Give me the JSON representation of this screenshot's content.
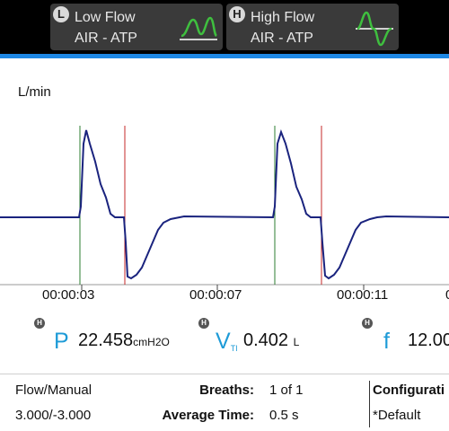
{
  "header": {
    "low_flow": {
      "badge": "L",
      "title": "Low Flow",
      "subtitle": "AIR - ATP"
    },
    "high_flow": {
      "badge": "H",
      "title": "High Flow",
      "subtitle": "AIR - ATP"
    },
    "icon_color": "#3fbf3f",
    "accent_color": "#1e88e5"
  },
  "chart_data": {
    "type": "line",
    "ylabel": "L/min",
    "x_tick_labels": [
      "00:00:03",
      "00:00:07",
      "00:00:11"
    ],
    "series_color": "#1a237e",
    "trigger_color": "#2e7d32",
    "end_color": "#c62828"
  },
  "readouts": [
    {
      "badge": "H",
      "symbol": "P",
      "symbol_sub": "",
      "value": "22.458",
      "unit": "cmH2O"
    },
    {
      "badge": "H",
      "symbol": "V",
      "symbol_sub": "TI",
      "value": "0.402",
      "unit": "L"
    },
    {
      "badge": "H",
      "symbol": "f",
      "symbol_sub": "",
      "value": "12.00",
      "unit": ""
    }
  ],
  "info": {
    "mode": "Flow/Manual",
    "range": "3.000/-3.000",
    "breaths_label": "Breaths:",
    "breaths_value": "1 of 1",
    "avg_time_label": "Average Time:",
    "avg_time_value": "0.5 s",
    "config_label": "Configurati",
    "config_value": "*Default"
  }
}
